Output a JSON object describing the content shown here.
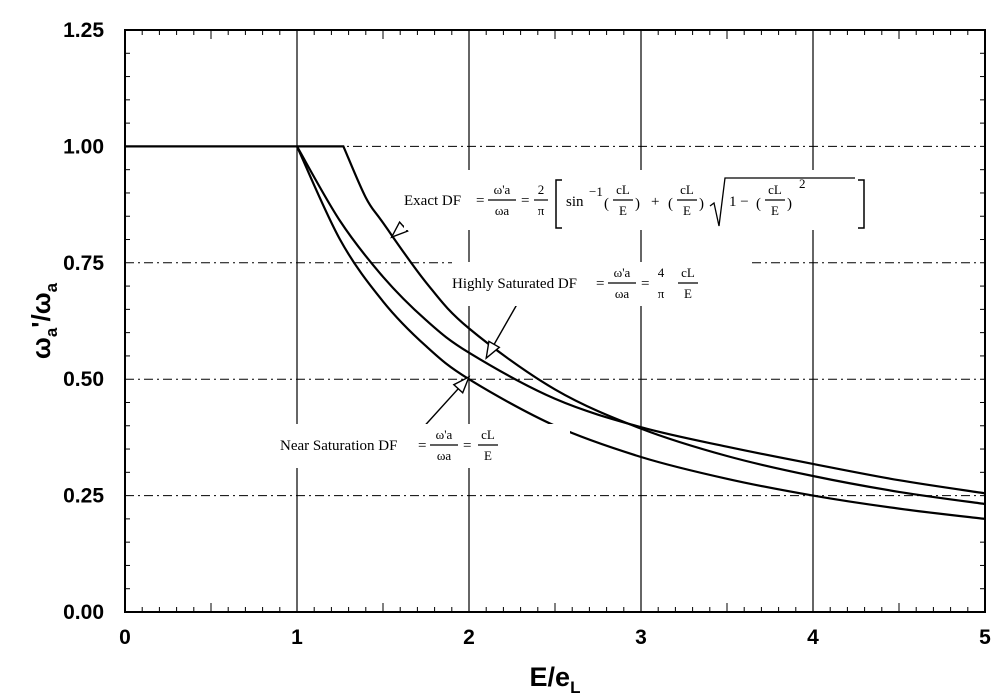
{
  "chart_data": {
    "type": "line",
    "title": "",
    "xlabel_main": "E/e",
    "xlabel_sub": "L",
    "ylabel_parts": [
      "ω",
      "a",
      "'/ω",
      "a"
    ],
    "xlim": [
      0,
      5
    ],
    "ylim": [
      0,
      1.25
    ],
    "xticks": [
      "0",
      "1",
      "2",
      "3",
      "4",
      "5"
    ],
    "yticks": [
      "0.00",
      "0.25",
      "0.50",
      "0.75",
      "1.00",
      "1.25"
    ],
    "grid": {
      "x_solid": true,
      "y_dashed": true
    },
    "series": [
      {
        "key": "exact",
        "x": [
          0,
          1.27,
          1.4,
          1.5,
          1.75,
          2.0,
          2.5,
          3.0,
          3.5,
          4.0,
          4.5,
          5.0
        ],
        "y": [
          1.0,
          1.0,
          0.89,
          0.836,
          0.708,
          0.609,
          0.478,
          0.394,
          0.335,
          0.292,
          0.258,
          0.232
        ]
      },
      {
        "key": "highly_saturated",
        "x": [
          1.0,
          1.25,
          1.5,
          1.75,
          2.0,
          2.5,
          3.0,
          3.5,
          4.0,
          4.5,
          5.0
        ],
        "y": [
          1.0,
          0.84,
          0.72,
          0.627,
          0.557,
          0.458,
          0.397,
          0.355,
          0.318,
          0.283,
          0.255
        ]
      },
      {
        "key": "near_saturation",
        "x": [
          1.0,
          1.25,
          1.5,
          1.75,
          2.0,
          2.5,
          3.0,
          3.5,
          4.0,
          4.5,
          5.0
        ],
        "y": [
          1.0,
          0.8,
          0.667,
          0.571,
          0.5,
          0.4,
          0.333,
          0.286,
          0.25,
          0.222,
          0.2
        ]
      }
    ],
    "annotations": {
      "exact": {
        "label": "Exact DF",
        "eq": "=",
        "frac_num": "ω'a",
        "frac_den": "ωa",
        "coef_num": "2",
        "coef_den": "π",
        "body": "[sin⁻¹(cL/E) + (cL/E)√(1 − (cL/E)²)]",
        "sin": "sin",
        "inv": "−1",
        "cl": "cL",
        "e": "E",
        "plus": "+",
        "one_minus": "1 −",
        "two": "2"
      },
      "highly_saturated": {
        "label": "Highly Saturated DF",
        "eq": "=",
        "frac_num": "ω'a",
        "frac_den": "ωa",
        "coef_num": "4",
        "coef_den": "π",
        "cl": "cL",
        "e": "E"
      },
      "near_saturation": {
        "label": "Near Saturation DF",
        "eq": "=",
        "frac_num": "ω'a",
        "frac_den": "ωa",
        "cl": "cL",
        "e": "E"
      }
    }
  }
}
